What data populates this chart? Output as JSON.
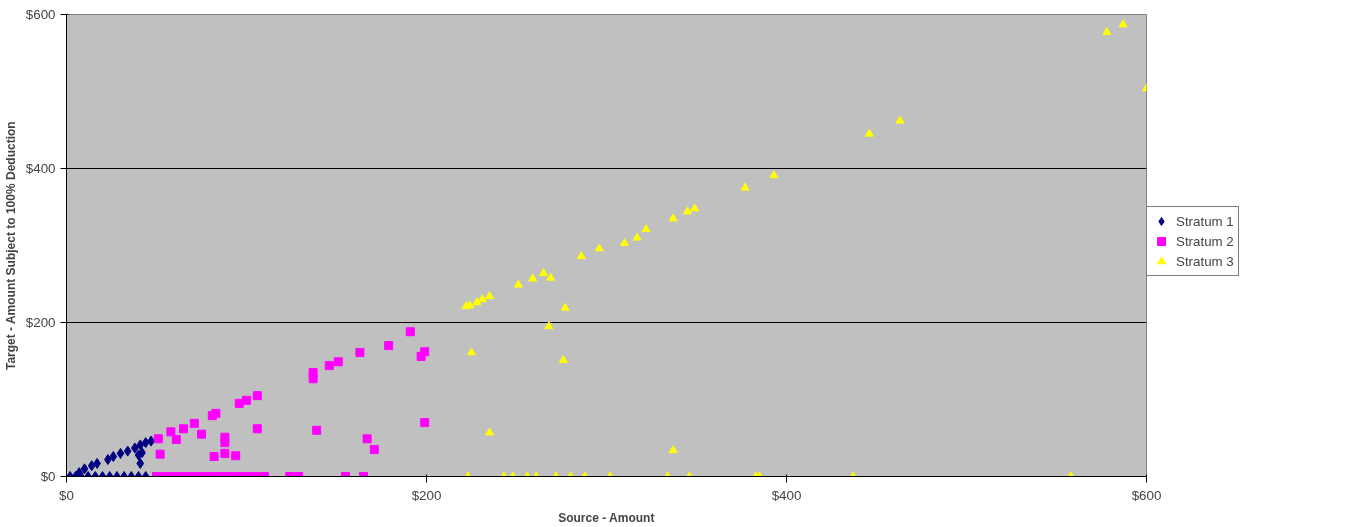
{
  "chart_data": {
    "type": "scatter",
    "xlabel": "Source - Amount",
    "ylabel": "Target - Amount Subject to 100% Deduction",
    "xlim": [
      0,
      600
    ],
    "ylim": [
      0,
      600
    ],
    "xticks": [
      {
        "value": 0,
        "label": "$0"
      },
      {
        "value": 200,
        "label": "$200"
      },
      {
        "value": 400,
        "label": "$400"
      },
      {
        "value": 600,
        "label": "$600"
      }
    ],
    "yticks": [
      {
        "value": 0,
        "label": "$0"
      },
      {
        "value": 200,
        "label": "$200"
      },
      {
        "value": 400,
        "label": "$400"
      },
      {
        "value": 600,
        "label": "$600"
      }
    ],
    "grid": "y",
    "legend": "right",
    "series": [
      {
        "name": "Stratum 1",
        "color": "#000080",
        "marker": "diamond",
        "x": [
          7,
          10,
          14,
          17,
          23,
          26,
          30,
          34,
          38,
          41,
          44,
          47,
          42,
          41,
          40,
          2,
          5,
          8,
          12,
          16,
          20,
          24,
          28,
          32,
          36,
          40,
          44
        ],
        "values": [
          5,
          10,
          14,
          17,
          22,
          26,
          30,
          33,
          37,
          41,
          44,
          46,
          31,
          17,
          28,
          0,
          0,
          0,
          0,
          0,
          0,
          0,
          0,
          0,
          0,
          0,
          0
        ]
      },
      {
        "name": "Stratum 2",
        "color": "#ff00ff",
        "marker": "square",
        "x": [
          51,
          52,
          58,
          61,
          65,
          71,
          75,
          81,
          83,
          82,
          88,
          88,
          88,
          94,
          96,
          100,
          106,
          106,
          137,
          137,
          139,
          191,
          179,
          163,
          151,
          146,
          199,
          197,
          199,
          167,
          171,
          50,
          55,
          60,
          65,
          70,
          75,
          80,
          85,
          90,
          95,
          100,
          105,
          110,
          124,
          129,
          155,
          165
        ],
        "values": [
          49,
          29,
          58,
          48,
          62,
          69,
          55,
          79,
          82,
          26,
          51,
          44,
          30,
          27,
          95,
          99,
          105,
          62,
          135,
          127,
          60,
          188,
          170,
          161,
          149,
          144,
          162,
          156,
          70,
          49,
          35,
          0,
          0,
          0,
          0,
          0,
          0,
          0,
          0,
          0,
          0,
          0,
          0,
          0,
          0,
          0,
          0,
          0
        ]
      },
      {
        "name": "Stratum 3",
        "color": "#ffff00",
        "marker": "triangle",
        "x": [
          222,
          224,
          228,
          231,
          235,
          251,
          259,
          265,
          269,
          277,
          268,
          286,
          296,
          310,
          317,
          322,
          337,
          345,
          349,
          377,
          393,
          446,
          463,
          578,
          587,
          600,
          225,
          276,
          235,
          337,
          223,
          243,
          248,
          256,
          261,
          272,
          280,
          288,
          302,
          334,
          346,
          383,
          385,
          437,
          558
        ],
        "values": [
          221,
          222,
          226,
          230,
          234,
          249,
          257,
          264,
          258,
          219,
          195,
          286,
          296,
          303,
          310,
          321,
          335,
          344,
          348,
          375,
          391,
          445,
          462,
          577,
          587,
          504,
          161,
          151,
          57,
          34,
          0,
          0,
          0,
          0,
          0,
          0,
          0,
          0,
          0,
          0,
          0,
          0,
          0,
          0,
          0
        ]
      }
    ]
  }
}
